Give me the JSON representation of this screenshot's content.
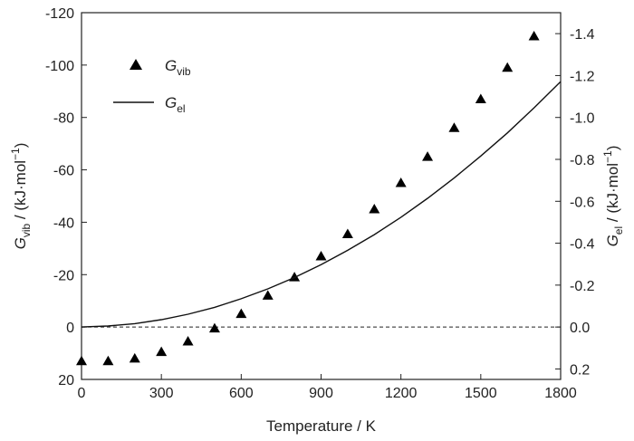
{
  "chart_data": {
    "type": "scatter",
    "xlabel": "Temperature / K",
    "xlim": [
      0,
      1800
    ],
    "x_ticks": [
      0,
      300,
      600,
      900,
      1200,
      1500,
      1800
    ],
    "y_left": {
      "label": {
        "symbol": "G",
        "sub": "vib",
        "rest": " / (kJ·mol",
        "sup": "−1",
        "close": ")"
      },
      "lim": [
        20,
        -120
      ],
      "inverted": true,
      "ticks": [
        20,
        0,
        -20,
        -40,
        -60,
        -80,
        -100,
        -120
      ]
    },
    "y_right": {
      "label": {
        "symbol": "G",
        "sub": "el",
        "rest": " / (kJ·mol",
        "sup": "−1",
        "close": ")"
      },
      "lim": [
        0.25,
        -1.5
      ],
      "inverted": true,
      "ticks": [
        "0.2",
        "0.0",
        "-0.2",
        "-0.4",
        "-0.6",
        "-0.8",
        "-1.0",
        "-1.2",
        "-1.4"
      ]
    },
    "series": [
      {
        "name": {
          "symbol": "G",
          "sub": "vib"
        },
        "kind": "scatter",
        "marker": "triangle",
        "axis": "left",
        "x": [
          0,
          100,
          200,
          300,
          400,
          500,
          600,
          700,
          800,
          900,
          1000,
          1100,
          1200,
          1300,
          1400,
          1500,
          1600,
          1700
        ],
        "y": [
          13,
          13,
          12,
          9.5,
          5.5,
          0.5,
          -5,
          -12,
          -19,
          -27,
          -35.5,
          -45,
          -55,
          -65,
          -76,
          -87,
          -99,
          -111
        ]
      },
      {
        "name": {
          "symbol": "G",
          "sub": "el"
        },
        "kind": "line",
        "axis": "right",
        "x": [
          0,
          100,
          200,
          300,
          400,
          500,
          600,
          700,
          800,
          900,
          1000,
          1100,
          1200,
          1300,
          1400,
          1500,
          1600,
          1700,
          1800
        ],
        "y": [
          0,
          -0.005,
          -0.016,
          -0.035,
          -0.061,
          -0.094,
          -0.135,
          -0.182,
          -0.236,
          -0.298,
          -0.366,
          -0.441,
          -0.524,
          -0.614,
          -0.711,
          -0.816,
          -0.926,
          -1.046,
          -1.171
        ]
      }
    ],
    "reference_line": {
      "axis": "left",
      "y": 0,
      "style": "dashed"
    },
    "legend": "upper-left",
    "grid": false
  }
}
